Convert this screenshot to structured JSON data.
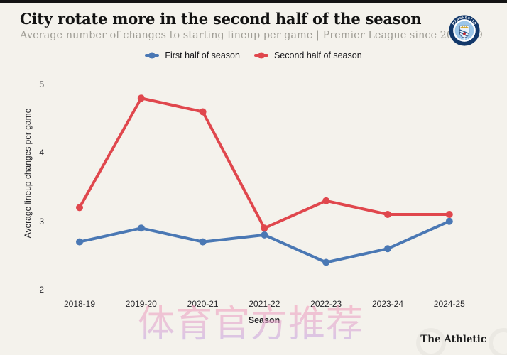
{
  "page": {
    "background": "#f4f2ec",
    "topbar_color": "#141414"
  },
  "header": {
    "title": "City rotate more in the second half of the season",
    "subtitle": "Average number of changes to starting lineup per game | Premier League since 2018-19"
  },
  "badge": {
    "club": "Manchester City crest",
    "top_text": "MANCHESTER",
    "bottom_text": "CITY"
  },
  "chart_data": {
    "type": "line",
    "title": "City rotate more in the second half of the season",
    "subtitle": "Average number of changes to starting lineup per game | Premier League since 2018-19",
    "categories": [
      "2018-19",
      "2019-20",
      "2020-21",
      "2021-22",
      "2022-23",
      "2023-24",
      "2024-25"
    ],
    "series": [
      {
        "name": "First half of season",
        "color": "#4a78b4",
        "values": [
          2.7,
          2.9,
          2.7,
          2.8,
          2.4,
          2.6,
          3.0
        ]
      },
      {
        "name": "Second half of season",
        "color": "#e0474d",
        "values": [
          3.2,
          4.8,
          4.6,
          2.9,
          3.3,
          3.1,
          3.1
        ]
      }
    ],
    "xlabel": "Season",
    "ylabel": "Average lineup changes per game",
    "ylim": [
      2,
      5
    ],
    "yticks": [
      2,
      3,
      4,
      5
    ],
    "grid": false,
    "legend_position": "top-center",
    "marker": "circle-on-line"
  },
  "watermark": {
    "text": "体育官方推荐"
  },
  "footer": {
    "brand": "The Athletic"
  }
}
